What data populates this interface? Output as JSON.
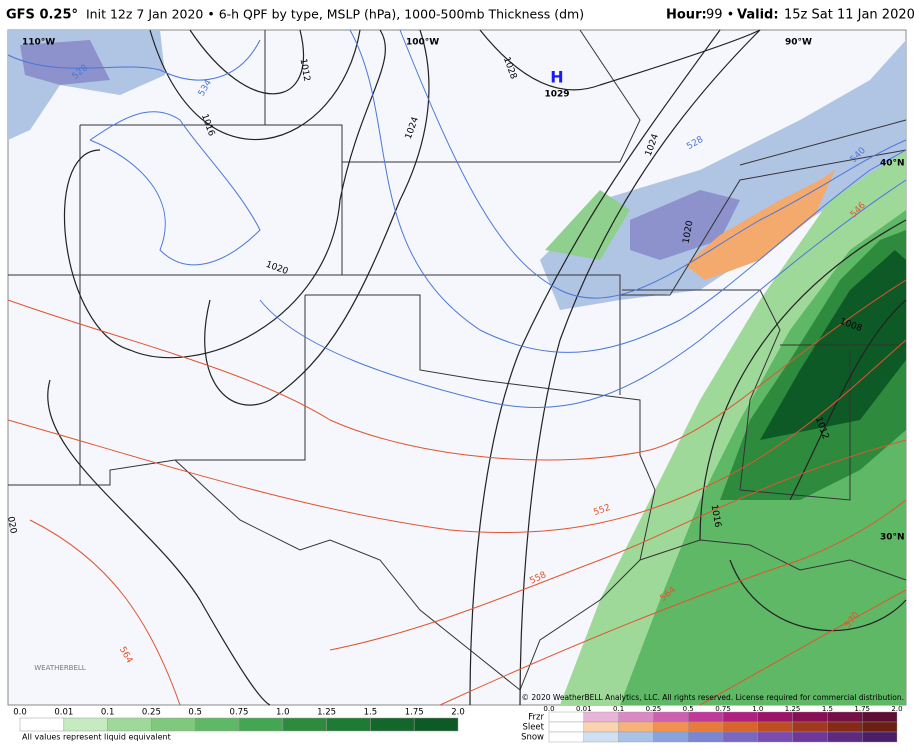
{
  "header": {
    "model": "GFS 0.25°",
    "description": "Init 12z 7 Jan 2020 • 6-h QPF by type, MSLP (hPa), 1000-500mb Thickness (dm)",
    "hour_label": "Hour:",
    "hour_value": "99 •",
    "valid_label": "Valid:",
    "valid_value": "15z Sat 11 Jan 2020"
  },
  "map": {
    "graticule_labels": [
      "110°W",
      "100°W",
      "90°W",
      "40°N",
      "30°N"
    ],
    "high_label": "H",
    "high_pressure": "1029",
    "isobar_labels": [
      "1012",
      "1016",
      "1024",
      "1028",
      "1020",
      "1024",
      "1020",
      "1008",
      "1012",
      "1016",
      "020"
    ],
    "thickness_labels": [
      "528",
      "534",
      "528",
      "540",
      "546",
      "552",
      "558",
      "564",
      "564",
      "570"
    ],
    "copyright": "© 2020 WeatherBELL Analytics, LLC. All rights reserved. License required for commercial distribution.",
    "logo": "WEATHERBELL"
  },
  "legend": {
    "qpf_values": [
      "0.0",
      "0.01",
      "0.1",
      "0.25",
      "0.5",
      "0.75",
      "1.0",
      "1.25",
      "1.5",
      "1.75",
      "2.0"
    ],
    "note": "All values represent liquid equivalent",
    "ptype_values": [
      "0.0",
      "0.01",
      "0.1",
      "0.25",
      "0.5",
      "0.75",
      "1.0",
      "1.25",
      "1.5",
      "1.75",
      "2.0"
    ],
    "ptype_rows": [
      "Frzr",
      "Sleet",
      "Snow"
    ]
  }
}
